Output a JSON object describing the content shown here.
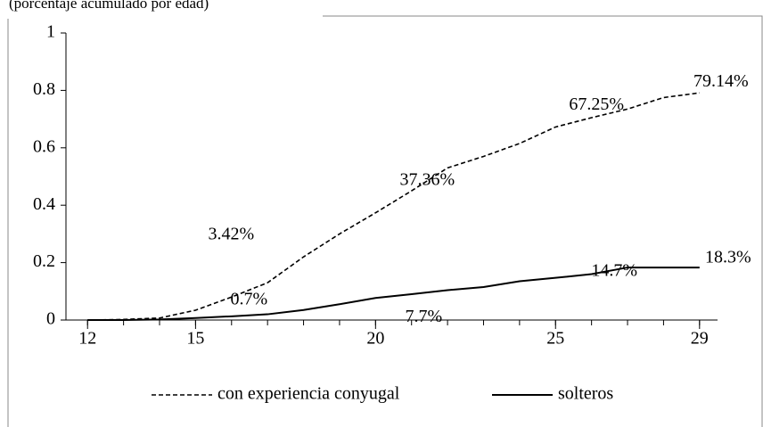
{
  "chart_data": {
    "type": "line",
    "subtitle": "(porcentaje acumulado por edad)",
    "x": [
      12,
      13,
      14,
      15,
      16,
      17,
      18,
      19,
      20,
      21,
      22,
      23,
      24,
      25,
      26,
      27,
      28,
      29
    ],
    "xlim": [
      11.4,
      29.5
    ],
    "xticks": [
      12,
      15,
      20,
      25,
      29
    ],
    "ylim": [
      0,
      1
    ],
    "yticks": [
      0,
      0.2,
      0.4,
      0.6,
      0.8,
      1
    ],
    "legend": "bottom",
    "series": [
      {
        "name": "con experiencia conyugal",
        "color": "#000000",
        "dash": true,
        "values": [
          0,
          0.002,
          0.007,
          0.0342,
          0.08,
          0.13,
          0.22,
          0.3,
          0.3736,
          0.45,
          0.53,
          0.57,
          0.615,
          0.6725,
          0.705,
          0.735,
          0.775,
          0.7914
        ],
        "value_labels": [
          null,
          null,
          null,
          "3.42%",
          null,
          null,
          null,
          null,
          "37.36%",
          null,
          null,
          null,
          null,
          "67.25%",
          null,
          null,
          null,
          "79.14%"
        ]
      },
      {
        "name": "solteros",
        "color": "#000000",
        "dash": false,
        "values": [
          0,
          0,
          0.002,
          0.007,
          0.013,
          0.02,
          0.035,
          0.055,
          0.077,
          0.09,
          0.104,
          0.115,
          0.135,
          0.147,
          0.16,
          0.183,
          0.183,
          0.183
        ],
        "value_labels": [
          null,
          null,
          null,
          "0.7%",
          null,
          null,
          null,
          null,
          "7.7%",
          null,
          null,
          null,
          null,
          "14.7%",
          null,
          null,
          null,
          "18.3%"
        ]
      }
    ]
  }
}
